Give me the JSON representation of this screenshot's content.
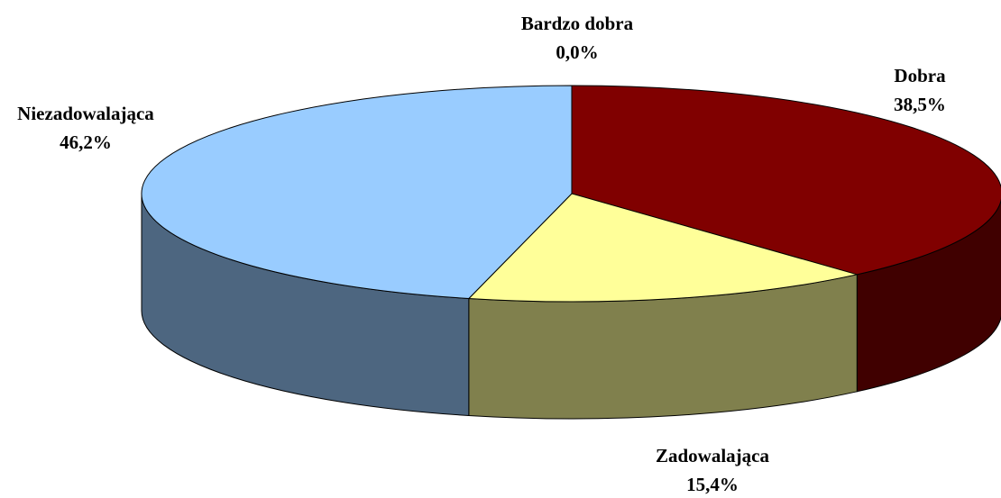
{
  "chart_data": {
    "type": "pie3d",
    "categories": [
      "Bardzo dobra",
      "Dobra",
      "Zadowalająca",
      "Niezadowalająca"
    ],
    "values": [
      0.0,
      38.5,
      15.4,
      46.2
    ],
    "value_labels": [
      "0,0%",
      "38,5%",
      "15,4%",
      "46,2%"
    ],
    "colors": [
      "#9999ff",
      "#800000",
      "#ffff99",
      "#99ccff"
    ]
  }
}
